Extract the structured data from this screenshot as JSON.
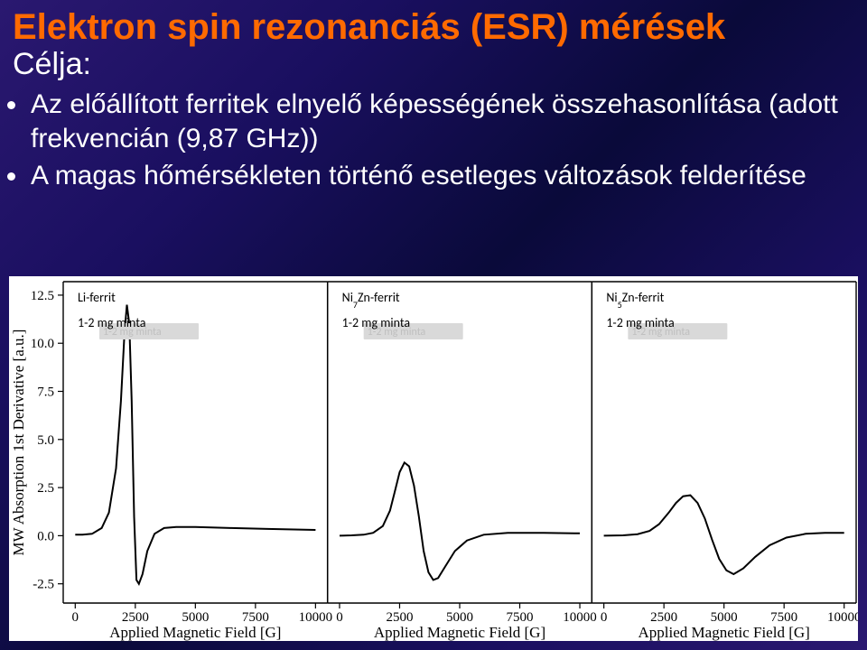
{
  "title": "Elektron spin rezonanciás (ESR) mérések",
  "subtitle": "Célja:",
  "bullets": [
    "Az előállított ferritek elnyelő képességének összehasonlítása (adott frekvencián (9,87 GHz))",
    "A magas hőmérsékleten történő esetleges változások felderítése"
  ],
  "chart": {
    "bg": "#ffffff",
    "axis_color": "#000000",
    "line_color": "#000000",
    "line_width": 2,
    "ylabel": "MW Absorption 1st Derivative [a.u.]",
    "xlabel": "Applied Magnetic Field [G]",
    "axis_font_family": "Times New Roman, serif",
    "axis_label_fontsize": 17,
    "tick_fontsize": 15,
    "yticks": [
      -2.5,
      0.0,
      2.5,
      5.0,
      7.5,
      10.0,
      12.5
    ],
    "ylim": [
      -3.5,
      13.2
    ],
    "xticks": [
      0,
      2500,
      5000,
      7500,
      10000
    ],
    "xlim": [
      -500,
      10500
    ],
    "panel_labels_fontsize": 14,
    "panel_labels_color": "#000000",
    "ghost_box_fill": "#d9d9d9",
    "ghost_text_fill": "#bfbfbf",
    "panels": [
      {
        "name_html": "Li-ferrit",
        "sample": "1-2 mg minta",
        "data": [
          [
            0,
            0.05
          ],
          [
            300,
            0.05
          ],
          [
            700,
            0.1
          ],
          [
            1100,
            0.4
          ],
          [
            1400,
            1.2
          ],
          [
            1700,
            3.5
          ],
          [
            1900,
            7.0
          ],
          [
            2050,
            10.5
          ],
          [
            2150,
            12.0
          ],
          [
            2250,
            11.0
          ],
          [
            2350,
            7.0
          ],
          [
            2450,
            1.0
          ],
          [
            2550,
            -2.3
          ],
          [
            2650,
            -2.5
          ],
          [
            2800,
            -2.0
          ],
          [
            3000,
            -0.8
          ],
          [
            3300,
            0.1
          ],
          [
            3700,
            0.4
          ],
          [
            4200,
            0.45
          ],
          [
            5000,
            0.45
          ],
          [
            6500,
            0.4
          ],
          [
            8000,
            0.35
          ],
          [
            10000,
            0.3
          ]
        ]
      },
      {
        "name_html": "Ni<tspan baseline-shift='sub' font-size='10'>7</tspan>Zn-ferrit",
        "sample": "1-2 mg minta",
        "data": [
          [
            0,
            0.0
          ],
          [
            500,
            0.02
          ],
          [
            1000,
            0.05
          ],
          [
            1400,
            0.15
          ],
          [
            1800,
            0.5
          ],
          [
            2100,
            1.3
          ],
          [
            2300,
            2.3
          ],
          [
            2500,
            3.3
          ],
          [
            2700,
            3.8
          ],
          [
            2900,
            3.6
          ],
          [
            3100,
            2.6
          ],
          [
            3300,
            1.0
          ],
          [
            3500,
            -0.8
          ],
          [
            3700,
            -1.9
          ],
          [
            3900,
            -2.3
          ],
          [
            4100,
            -2.2
          ],
          [
            4400,
            -1.6
          ],
          [
            4800,
            -0.8
          ],
          [
            5300,
            -0.25
          ],
          [
            6000,
            0.05
          ],
          [
            7000,
            0.15
          ],
          [
            8500,
            0.15
          ],
          [
            10000,
            0.12
          ]
        ]
      },
      {
        "name_html": "Ni<tspan baseline-shift='sub' font-size='10'>5</tspan>Zn-ferrit",
        "sample": "1-2 mg minta",
        "data": [
          [
            0,
            0.0
          ],
          [
            800,
            0.02
          ],
          [
            1400,
            0.08
          ],
          [
            1900,
            0.25
          ],
          [
            2300,
            0.6
          ],
          [
            2700,
            1.2
          ],
          [
            3000,
            1.7
          ],
          [
            3300,
            2.05
          ],
          [
            3600,
            2.1
          ],
          [
            3900,
            1.7
          ],
          [
            4200,
            0.9
          ],
          [
            4500,
            -0.2
          ],
          [
            4800,
            -1.2
          ],
          [
            5100,
            -1.8
          ],
          [
            5400,
            -2.0
          ],
          [
            5800,
            -1.7
          ],
          [
            6300,
            -1.1
          ],
          [
            6900,
            -0.5
          ],
          [
            7600,
            -0.1
          ],
          [
            8400,
            0.1
          ],
          [
            9200,
            0.15
          ],
          [
            10000,
            0.15
          ]
        ]
      }
    ]
  }
}
